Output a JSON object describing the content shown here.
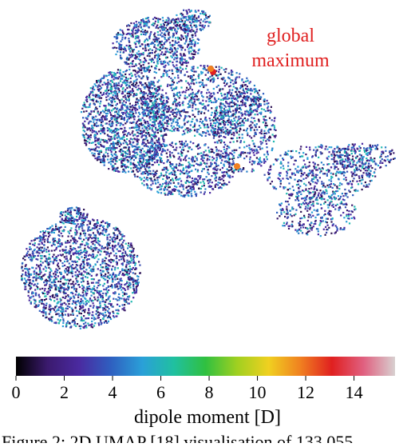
{
  "figure": {
    "annotation": [
      "global",
      "maximum"
    ],
    "colorbar": {
      "label": "dipole moment [D]",
      "lim": [
        0,
        15.7
      ],
      "ticks": [
        0,
        2,
        4,
        6,
        8,
        10,
        12,
        14
      ],
      "colormap": [
        "#000000",
        "#3b1a6e",
        "#4a2aa0",
        "#2f5fc0",
        "#2aa0d8",
        "#20c0a0",
        "#30c040",
        "#a0d020",
        "#f0d020",
        "#f08020",
        "#e02020",
        "#e06080",
        "#d8d0d0"
      ]
    },
    "caption": "Figure 2: 2D UMAP [18] visualisation of 133,055"
  }
}
